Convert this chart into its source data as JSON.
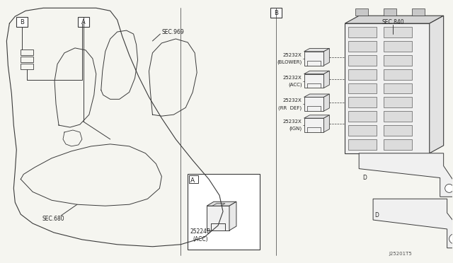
{
  "bg_color": "#f5f5f0",
  "line_color": "#3a3a3a",
  "text_color": "#222222",
  "fig_width": 6.4,
  "fig_height": 3.72,
  "diagram_id": "J25201T5",
  "labels": {
    "sec_680": "SEC.680",
    "sec_969": "SEC.969",
    "sec_840": "SEC.840",
    "label_A": "A",
    "label_B": "B",
    "part_25224B": "25224B",
    "acc_label": "(ACC)",
    "relay1_num": "25232X",
    "relay1_name": "(BLOWER)",
    "relay2_num": "25232X",
    "relay2_name": "(ACC)",
    "relay3_num": "25232X",
    "relay3_name": "(RR  DEF)",
    "relay4_num": "25232X",
    "relay4_name": "(IGN)"
  }
}
